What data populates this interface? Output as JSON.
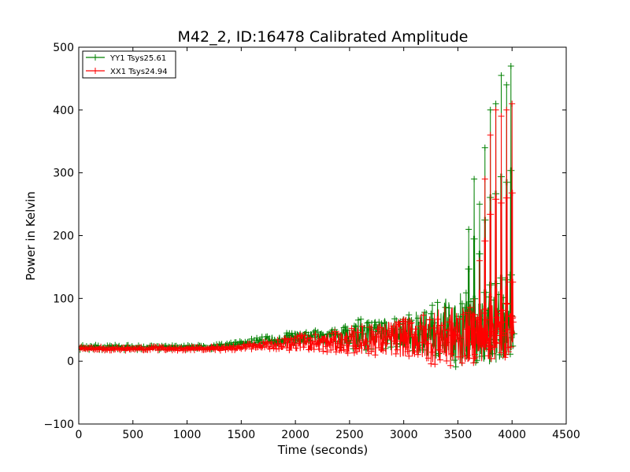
{
  "chart_data": {
    "type": "line",
    "title": "M42_2, ID:16478 Calibrated Amplitude",
    "xlabel": "Time (seconds)",
    "ylabel": "Power in Kelvin",
    "xlim": [
      0,
      4500
    ],
    "ylim": [
      -100,
      500
    ],
    "xticks": [
      "0",
      "500",
      "1000",
      "1500",
      "2000",
      "2500",
      "3000",
      "3500",
      "4000",
      "4500"
    ],
    "yticks": [
      "−100",
      "0",
      "100",
      "200",
      "300",
      "400",
      "500"
    ],
    "grid": false,
    "legend_position": "top-left",
    "series": [
      {
        "name": "YY1 Tsys25.61",
        "color": "#008000",
        "marker": "plus",
        "x": [
          0,
          200,
          400,
          600,
          800,
          1000,
          1200,
          1400,
          1500,
          1600,
          1700,
          1800,
          1900,
          2000,
          2100,
          2200,
          2300,
          2400,
          2500,
          2600,
          2700,
          2800,
          2900,
          3000,
          3100,
          3200,
          3300,
          3400,
          3450,
          3500,
          3550,
          3600,
          3650,
          3700,
          3750,
          3800,
          3850,
          3900,
          3950,
          4000,
          4020
        ],
        "mid": [
          22,
          22,
          22,
          22,
          22,
          23,
          23,
          25,
          27,
          30,
          32,
          35,
          37,
          38,
          40,
          40,
          40,
          38,
          40,
          42,
          42,
          44,
          44,
          46,
          46,
          46,
          47,
          48,
          50,
          50,
          50,
          52,
          52,
          52,
          52,
          52,
          52,
          52,
          52,
          55,
          45
        ],
        "amp": [
          4,
          4,
          4,
          4,
          4,
          4,
          4,
          5,
          5,
          6,
          7,
          8,
          9,
          10,
          10,
          10,
          12,
          16,
          20,
          25,
          25,
          25,
          25,
          30,
          35,
          40,
          50,
          55,
          60,
          60,
          60,
          60,
          60,
          60,
          60,
          60,
          60,
          60,
          60,
          40,
          10
        ],
        "spikes": [
          [
            3600,
            210
          ],
          [
            3650,
            290
          ],
          [
            3700,
            250
          ],
          [
            3750,
            340
          ],
          [
            3800,
            400
          ],
          [
            3850,
            410
          ],
          [
            3900,
            455
          ],
          [
            3950,
            440
          ],
          [
            3990,
            470
          ]
        ]
      },
      {
        "name": "XX1 Tsys24.94",
        "color": "#ff0000",
        "marker": "plus",
        "x": [
          0,
          200,
          400,
          600,
          800,
          1000,
          1200,
          1400,
          1500,
          1600,
          1700,
          1800,
          1900,
          2000,
          2100,
          2200,
          2300,
          2400,
          2500,
          2600,
          2700,
          2800,
          2900,
          3000,
          3100,
          3200,
          3300,
          3400,
          3450,
          3500,
          3550,
          3600,
          3650,
          3700,
          3750,
          3800,
          3850,
          3900,
          3950,
          4000,
          4020
        ],
        "mid": [
          20,
          20,
          20,
          20,
          20,
          20,
          20,
          21,
          22,
          24,
          25,
          27,
          28,
          28,
          30,
          30,
          30,
          30,
          32,
          34,
          35,
          35,
          36,
          38,
          38,
          38,
          38,
          38,
          40,
          40,
          40,
          42,
          42,
          44,
          44,
          45,
          45,
          45,
          50,
          55,
          55
        ],
        "amp": [
          3,
          3,
          3,
          3,
          3,
          3,
          3,
          4,
          4,
          5,
          6,
          8,
          10,
          12,
          14,
          15,
          16,
          18,
          20,
          22,
          25,
          28,
          30,
          32,
          35,
          40,
          45,
          50,
          50,
          50,
          45,
          45,
          45,
          45,
          45,
          45,
          45,
          45,
          45,
          30,
          15
        ],
        "spikes": [
          [
            3650,
            100
          ],
          [
            3700,
            160
          ],
          [
            3750,
            290
          ],
          [
            3800,
            360
          ],
          [
            3850,
            400
          ],
          [
            3900,
            390
          ],
          [
            3950,
            400
          ],
          [
            4000,
            410
          ]
        ]
      }
    ]
  }
}
